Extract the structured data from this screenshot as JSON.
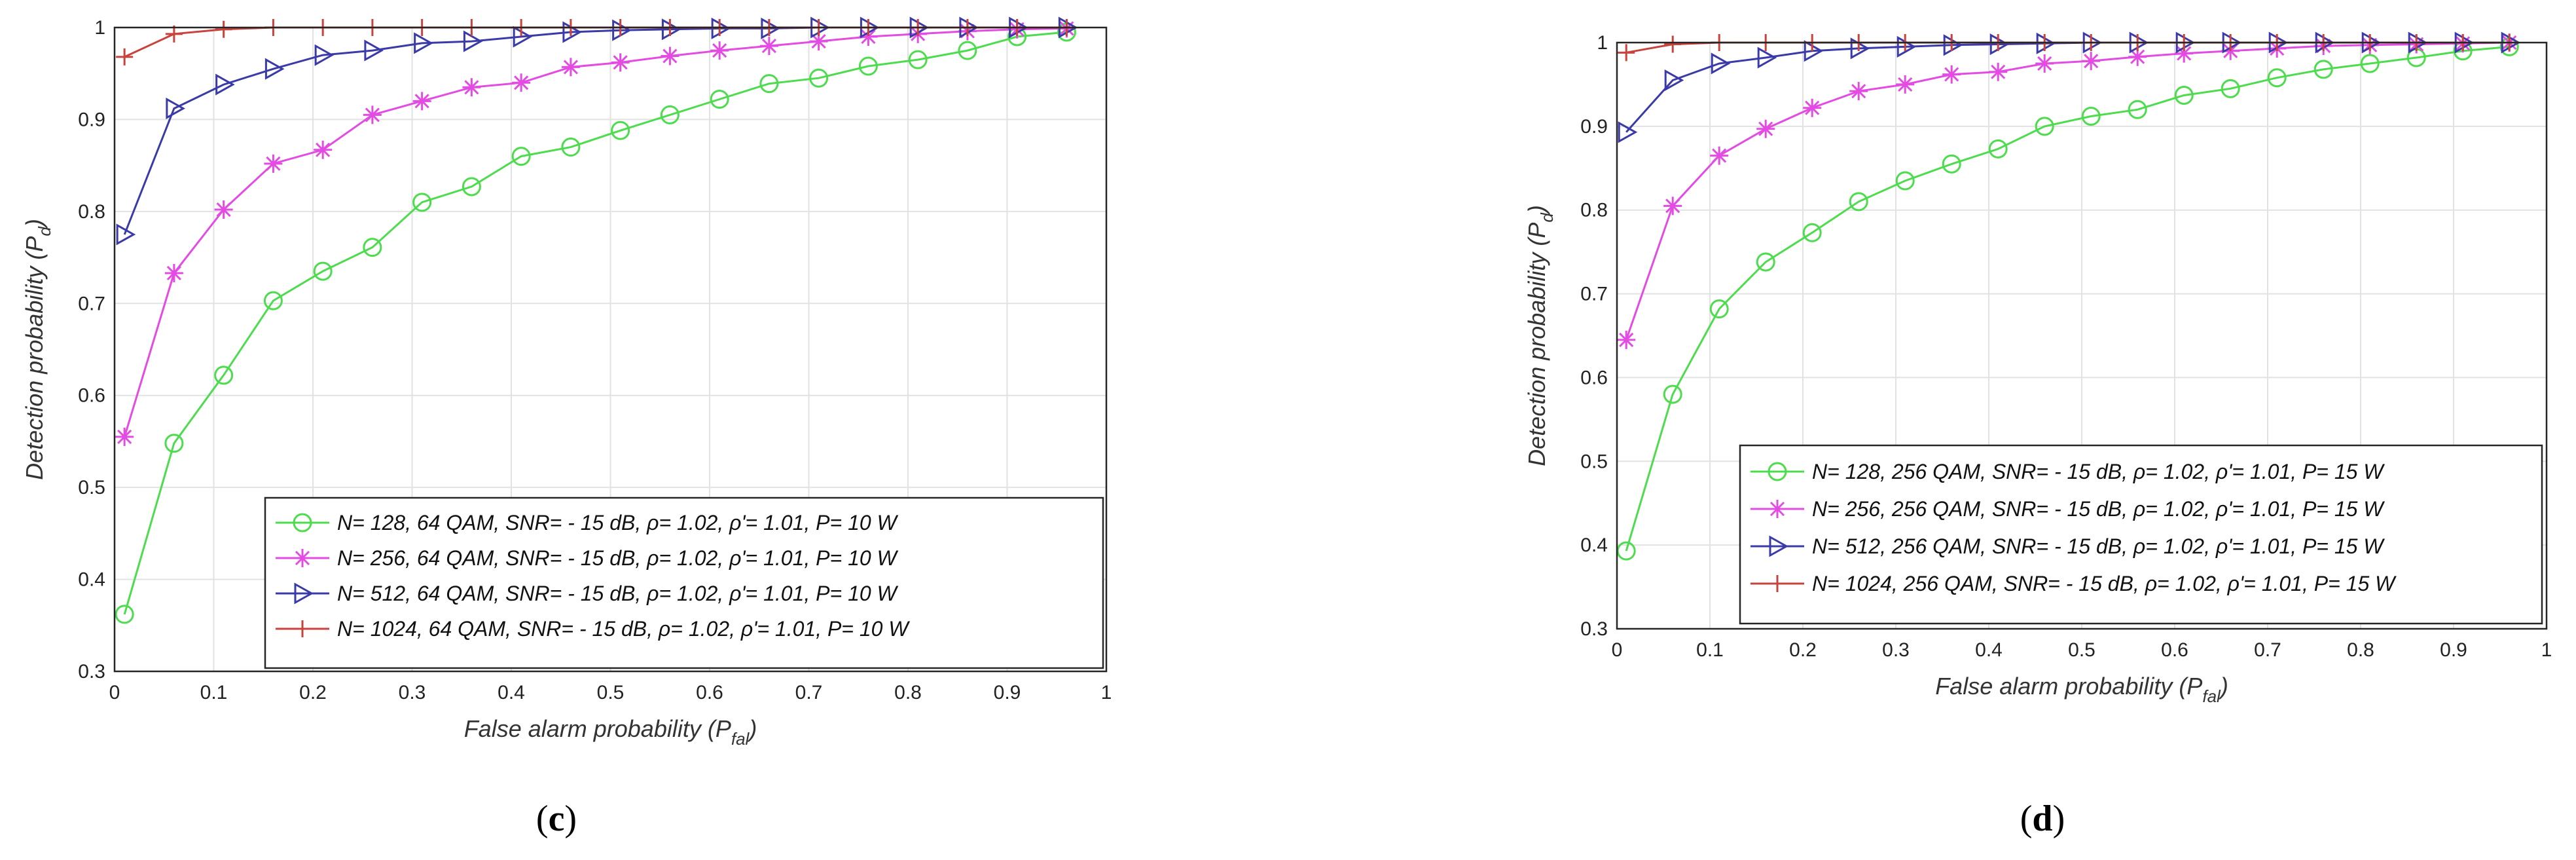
{
  "chart_data": [
    {
      "type": "line",
      "panel_label": "(c)",
      "caption": {
        "open": "(",
        "letter": "c",
        "close": ")"
      },
      "xlabel": {
        "main": "False alarm probability (P",
        "sub": "fal",
        "close": ")"
      },
      "ylabel": {
        "main": "Detection probability (P",
        "sub": "d",
        "close": ")"
      },
      "xlim": [
        0,
        1
      ],
      "ylim": [
        0.3,
        1
      ],
      "xticks": [
        "0",
        "0.1",
        "0.2",
        "0.3",
        "0.4",
        "0.5",
        "0.6",
        "0.7",
        "0.8",
        "0.9",
        "1"
      ],
      "yticks": [
        "0.3",
        "0.4",
        "0.5",
        "0.6",
        "0.7",
        "0.8",
        "0.9",
        "1"
      ],
      "grid": true,
      "legend_position": "bottom-right",
      "x": [
        0.01,
        0.06,
        0.11,
        0.16,
        0.21,
        0.26,
        0.31,
        0.36,
        0.41,
        0.46,
        0.51,
        0.56,
        0.61,
        0.66,
        0.71,
        0.76,
        0.81,
        0.86,
        0.91,
        0.96
      ],
      "series": [
        {
          "name": "N= 128, 64 QAM, SNR= - 15 dB, ρ= 1.02, ρ'= 1.01, P= 10 W",
          "color": "#4ddc4d",
          "marker": "circle",
          "values": [
            0.362,
            0.548,
            0.622,
            0.703,
            0.735,
            0.761,
            0.81,
            0.827,
            0.86,
            0.87,
            0.888,
            0.905,
            0.922,
            0.939,
            0.945,
            0.958,
            0.965,
            0.975,
            0.99,
            0.995
          ]
        },
        {
          "name": "N= 256, 64 QAM, SNR= - 15 dB, ρ= 1.02, ρ'= 1.01, P= 10 W",
          "color": "#e34be3",
          "marker": "star",
          "values": [
            0.555,
            0.733,
            0.802,
            0.852,
            0.867,
            0.905,
            0.92,
            0.935,
            0.94,
            0.957,
            0.962,
            0.969,
            0.975,
            0.98,
            0.985,
            0.99,
            0.993,
            0.996,
            0.998,
            0.999
          ]
        },
        {
          "name": "N= 512, 64 QAM, SNR= - 15 dB, ρ= 1.02, ρ'= 1.01, P= 10 W",
          "color": "#3a3aa8",
          "marker": "triangle-right",
          "values": [
            0.775,
            0.912,
            0.938,
            0.955,
            0.97,
            0.975,
            0.983,
            0.985,
            0.99,
            0.995,
            0.997,
            0.998,
            0.999,
            0.999,
            1.0,
            1.0,
            1.0,
            1.0,
            1.0,
            1.0
          ]
        },
        {
          "name": "N= 1024, 64 QAM, SNR= - 15 dB, ρ= 1.02, ρ'= 1.01, P= 10 W",
          "color": "#c9423b",
          "marker": "plus",
          "values": [
            0.968,
            0.993,
            0.998,
            1.0,
            1.0,
            1.0,
            1.0,
            1.0,
            1.0,
            1.0,
            1.0,
            1.0,
            1.0,
            1.0,
            1.0,
            1.0,
            1.0,
            1.0,
            1.0,
            1.0
          ]
        }
      ]
    },
    {
      "type": "line",
      "panel_label": "(d)",
      "caption": {
        "open": "(",
        "letter": "d",
        "close": ")"
      },
      "xlabel": {
        "main": "False alarm probability (P",
        "sub": "fal",
        "close": ")"
      },
      "ylabel": {
        "main": "Detection probability (P",
        "sub": "d",
        "close": ")"
      },
      "xlim": [
        0,
        1
      ],
      "ylim": [
        0.3,
        1
      ],
      "xticks": [
        "0",
        "0.1",
        "0.2",
        "0.3",
        "0.4",
        "0.5",
        "0.6",
        "0.7",
        "0.8",
        "0.9",
        "1"
      ],
      "yticks": [
        "0.3",
        "0.4",
        "0.5",
        "0.6",
        "0.7",
        "0.8",
        "0.9",
        "1"
      ],
      "grid": true,
      "legend_position": "bottom-right",
      "x": [
        0.01,
        0.06,
        0.11,
        0.16,
        0.21,
        0.26,
        0.31,
        0.36,
        0.41,
        0.46,
        0.51,
        0.56,
        0.61,
        0.66,
        0.71,
        0.76,
        0.81,
        0.86,
        0.91,
        0.96
      ],
      "series": [
        {
          "name": "N= 128, 256 QAM, SNR= - 15 dB, ρ= 1.02, ρ'= 1.01, P= 15 W",
          "color": "#4ddc4d",
          "marker": "circle",
          "values": [
            0.393,
            0.58,
            0.682,
            0.738,
            0.773,
            0.81,
            0.835,
            0.855,
            0.873,
            0.9,
            0.912,
            0.92,
            0.937,
            0.945,
            0.958,
            0.968,
            0.975,
            0.982,
            0.99,
            0.995
          ]
        },
        {
          "name": "N= 256, 256 QAM, SNR= - 15 dB, ρ= 1.02, ρ'= 1.01, P= 15 W",
          "color": "#e34be3",
          "marker": "star",
          "values": [
            0.645,
            0.805,
            0.865,
            0.897,
            0.922,
            0.942,
            0.95,
            0.962,
            0.965,
            0.975,
            0.978,
            0.983,
            0.987,
            0.99,
            0.993,
            0.996,
            0.997,
            0.998,
            0.999,
            1.0
          ]
        },
        {
          "name": "N= 512, 256 QAM, SNR= - 15 dB, ρ= 1.02, ρ'= 1.01, P= 15 W",
          "color": "#3a3aa8",
          "marker": "triangle-right",
          "values": [
            0.893,
            0.955,
            0.975,
            0.982,
            0.99,
            0.993,
            0.995,
            0.997,
            0.998,
            0.999,
            1.0,
            1.0,
            1.0,
            1.0,
            1.0,
            1.0,
            1.0,
            1.0,
            1.0,
            1.0
          ]
        },
        {
          "name": "N= 1024, 256 QAM, SNR= - 15 dB, ρ= 1.02, ρ'= 1.01, P= 15 W",
          "color": "#c9423b",
          "marker": "plus",
          "values": [
            0.988,
            0.998,
            1.0,
            1.0,
            1.0,
            1.0,
            1.0,
            1.0,
            1.0,
            1.0,
            1.0,
            1.0,
            1.0,
            1.0,
            1.0,
            1.0,
            1.0,
            1.0,
            1.0,
            1.0
          ]
        }
      ]
    }
  ]
}
